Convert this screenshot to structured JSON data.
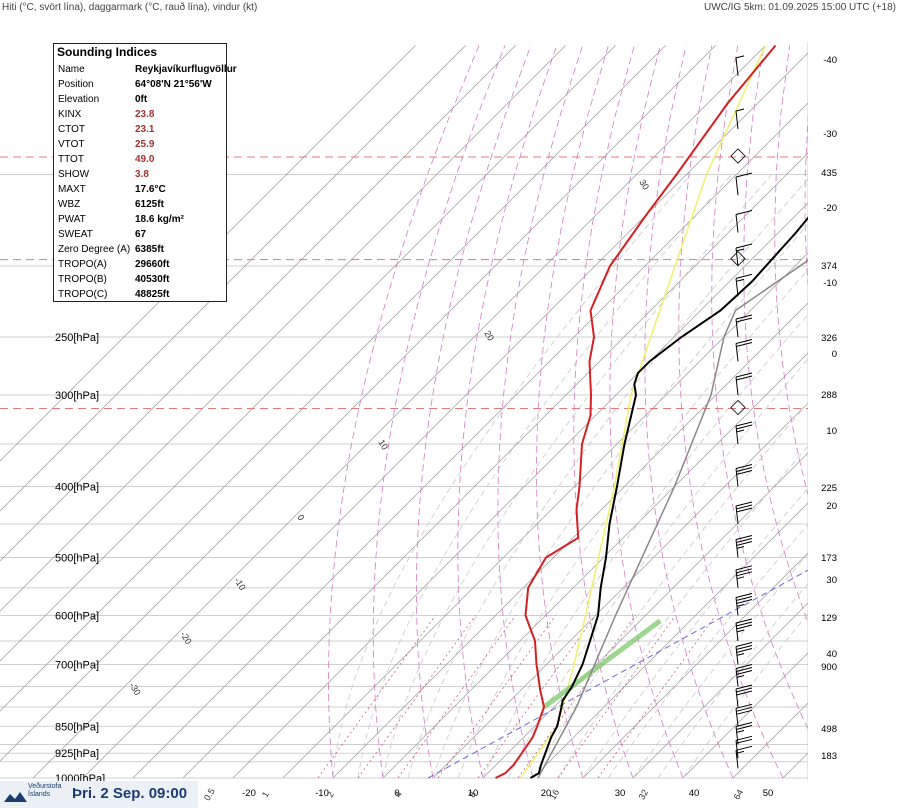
{
  "header": {
    "left": "Hiti (°C, svört lína), daggarmark (°C, rauð lína), vindur (kt)",
    "right": "UWC/IG 5km: 01.09.2025 15:00 UTC (+18)"
  },
  "indices": {
    "title": "Sounding Indices",
    "rows": [
      {
        "k": "Name",
        "v": "Reykjavíkurflugvöllur"
      },
      {
        "k": "Position",
        "v": "64°08'N 21°56'W"
      },
      {
        "k": "Elevation",
        "v": "0ft"
      },
      {
        "k": "KINX",
        "v": "23.8"
      },
      {
        "k": "CTOT",
        "v": "23.1"
      },
      {
        "k": "VTOT",
        "v": "25.9"
      },
      {
        "k": "TTOT",
        "v": "49.0"
      },
      {
        "k": "SHOW",
        "v": "3.8"
      },
      {
        "k": "MAXT",
        "v": "17.6°C"
      },
      {
        "k": "WBZ",
        "v": "6125ft"
      },
      {
        "k": "PWAT",
        "v": "18.6 kg/m²"
      },
      {
        "k": "SWEAT",
        "v": "67"
      },
      {
        "k": "Zero Degree (A)",
        "v": "6385ft"
      },
      {
        "k": "TROPO(A)",
        "v": "29660ft"
      },
      {
        "k": "TROPO(B)",
        "v": "40530ft"
      },
      {
        "k": "TROPO(C)",
        "v": "48825ft"
      }
    ]
  },
  "footer": {
    "logo_line1": "Veðurstofa",
    "logo_line2": "Íslands",
    "datetime": "Þri. 2 Sep. 09:00"
  },
  "chart_data": {
    "type": "line",
    "pressure_labels": [
      {
        "p": 250,
        "label": "250[hPa]"
      },
      {
        "p": 300,
        "label": "300[hPa]"
      },
      {
        "p": 400,
        "label": "400[hPa]"
      },
      {
        "p": 500,
        "label": "500[hPa]"
      },
      {
        "p": 600,
        "label": "600[hPa]"
      },
      {
        "p": 700,
        "label": "700[hPa]"
      },
      {
        "p": 850,
        "label": "850[hPa]"
      },
      {
        "p": 925,
        "label": "925[hPa]"
      },
      {
        "p": 1000,
        "label": "1000[hPa]"
      }
    ],
    "right_labels": [
      "-40",
      "-30",
      "435",
      "-20",
      "374",
      "-10",
      "326",
      "0",
      "288",
      "10",
      "225",
      "20",
      "173",
      "30",
      "129",
      "40",
      "900",
      "498",
      "183"
    ],
    "x_tick_labels": [
      "-20",
      "-10",
      "0",
      "10",
      "20",
      "30",
      "40",
      "50"
    ],
    "isotherm_labels": [
      "30",
      "20",
      "10",
      "0",
      "-10",
      "-20",
      "-30"
    ],
    "bottom_labels": [
      "0.5",
      "1",
      "2",
      "4",
      "8",
      "16",
      "32",
      "64"
    ],
    "temperature": [
      {
        "p": 1000,
        "t": 9.5
      },
      {
        "p": 985,
        "t": 10.2
      },
      {
        "p": 960,
        "t": 9.0
      },
      {
        "p": 925,
        "t": 7.5
      },
      {
        "p": 880,
        "t": 5.5
      },
      {
        "p": 850,
        "t": 4.5
      },
      {
        "p": 800,
        "t": 1.5
      },
      {
        "p": 785,
        "t": 0.5
      },
      {
        "p": 750,
        "t": -0.5
      },
      {
        "p": 700,
        "t": -2.8
      },
      {
        "p": 650,
        "t": -6.0
      },
      {
        "p": 600,
        "t": -9.5
      },
      {
        "p": 550,
        "t": -14.5
      },
      {
        "p": 500,
        "t": -19.5
      },
      {
        "p": 450,
        "t": -25.5
      },
      {
        "p": 400,
        "t": -31.5
      },
      {
        "p": 350,
        "t": -38.5
      },
      {
        "p": 300,
        "t": -46.0
      },
      {
        "p": 290,
        "t": -48.5
      },
      {
        "p": 280,
        "t": -50.0
      },
      {
        "p": 270,
        "t": -50.0
      },
      {
        "p": 250,
        "t": -48.5
      },
      {
        "p": 230,
        "t": -46.0
      },
      {
        "p": 210,
        "t": -45.5
      },
      {
        "p": 180,
        "t": -46.5
      },
      {
        "p": 150,
        "t": -48.5
      },
      {
        "p": 120,
        "t": -51.5
      },
      {
        "p": 100,
        "t": -54.0
      }
    ],
    "dewpoint": [
      {
        "p": 1000,
        "t": 2.5
      },
      {
        "p": 985,
        "t": 3.5
      },
      {
        "p": 960,
        "t": 3.5
      },
      {
        "p": 925,
        "t": 2.8
      },
      {
        "p": 880,
        "t": 1.8
      },
      {
        "p": 850,
        "t": 0.5
      },
      {
        "p": 800,
        "t": -2.0
      },
      {
        "p": 760,
        "t": -6.0
      },
      {
        "p": 700,
        "t": -12.0
      },
      {
        "p": 650,
        "t": -17.0
      },
      {
        "p": 600,
        "t": -24.0
      },
      {
        "p": 550,
        "t": -29.0
      },
      {
        "p": 500,
        "t": -31.5
      },
      {
        "p": 470,
        "t": -29.0
      },
      {
        "p": 430,
        "t": -35.0
      },
      {
        "p": 400,
        "t": -39.0
      },
      {
        "p": 350,
        "t": -47.0
      },
      {
        "p": 320,
        "t": -51.0
      },
      {
        "p": 300,
        "t": -55.0
      },
      {
        "p": 270,
        "t": -62.0
      },
      {
        "p": 250,
        "t": -66.0
      },
      {
        "p": 230,
        "t": -72.0
      },
      {
        "p": 200,
        "t": -77.0
      },
      {
        "p": 170,
        "t": -80.0
      },
      {
        "p": 150,
        "t": -82.0
      },
      {
        "p": 120,
        "t": -86.0
      },
      {
        "p": 100,
        "t": -88.0
      }
    ],
    "tropopause_levels": [
      313,
      196,
      142
    ],
    "wind_barbs": [
      {
        "p": 970,
        "speed": 15
      },
      {
        "p": 940,
        "speed": 20
      },
      {
        "p": 900,
        "speed": 25
      },
      {
        "p": 850,
        "speed": 30
      },
      {
        "p": 800,
        "speed": 30
      },
      {
        "p": 750,
        "speed": 35
      },
      {
        "p": 700,
        "speed": 35
      },
      {
        "p": 650,
        "speed": 35
      },
      {
        "p": 600,
        "speed": 35
      },
      {
        "p": 550,
        "speed": 35
      },
      {
        "p": 500,
        "speed": 35
      },
      {
        "p": 450,
        "speed": 30
      },
      {
        "p": 400,
        "speed": 30
      },
      {
        "p": 350,
        "speed": 25
      },
      {
        "p": 300,
        "speed": 20
      },
      {
        "p": 270,
        "speed": 20
      },
      {
        "p": 250,
        "speed": 20
      },
      {
        "p": 220,
        "speed": 15
      },
      {
        "p": 200,
        "speed": 15
      },
      {
        "p": 180,
        "speed": 10
      },
      {
        "p": 160,
        "speed": 10
      },
      {
        "p": 130,
        "speed": 5
      },
      {
        "p": 110,
        "speed": 5
      }
    ]
  }
}
